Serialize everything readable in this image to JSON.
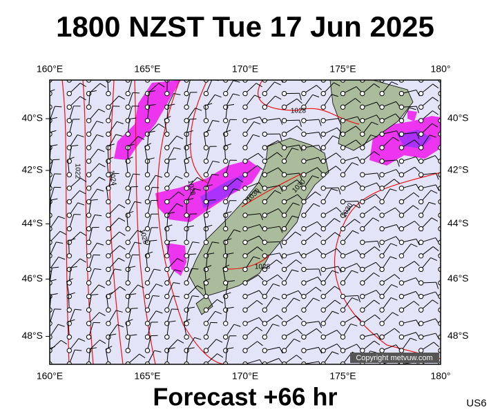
{
  "header": {
    "title": "1800 NZST Tue 17 Jun 2025"
  },
  "axes": {
    "lon_ticks": [
      {
        "value": 160,
        "label": "160°E"
      },
      {
        "value": 165,
        "label": "165°E"
      },
      {
        "value": 170,
        "label": "170°E"
      },
      {
        "value": 175,
        "label": "175°E"
      },
      {
        "value": 180,
        "label": "180°"
      }
    ],
    "lat_ticks": [
      {
        "value": -40,
        "label": "40°S"
      },
      {
        "value": -42,
        "label": "42°S"
      },
      {
        "value": -44,
        "label": "44°S"
      },
      {
        "value": -46,
        "label": "46°S"
      },
      {
        "value": -48,
        "label": "48°S"
      }
    ]
  },
  "isobar_labels": [
    "1022",
    "1024",
    "1026",
    "1028",
    "1028",
    "1028",
    "1030",
    "1030",
    "1030"
  ],
  "copyright": "Copyright metvuw.com",
  "footer": {
    "forecast": "Forecast +66 hr",
    "code": "US6"
  }
}
